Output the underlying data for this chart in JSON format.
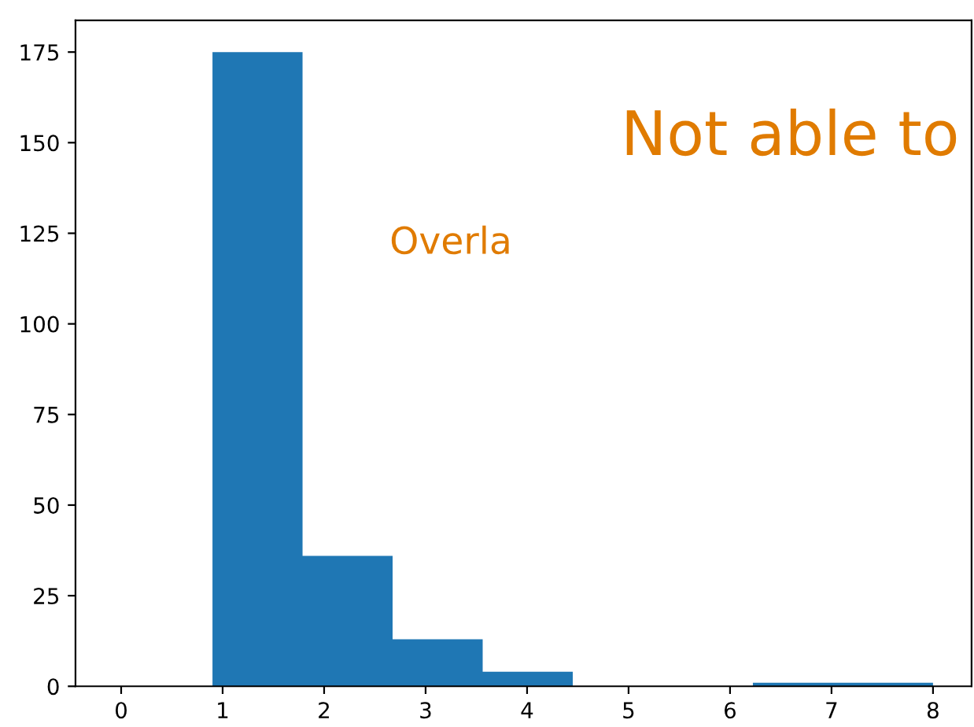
{
  "chart_data": {
    "type": "histogram",
    "bins": [
      0.9,
      1.7875,
      2.675,
      3.5625,
      4.45,
      5.3375,
      6.225,
      7.1125,
      8.0
    ],
    "values": [
      175,
      36,
      13,
      4,
      0,
      0,
      1,
      1
    ],
    "color": "#1f77b4",
    "xlim": [
      -0.45,
      8.38
    ],
    "xticks": [
      0,
      1,
      2,
      3,
      4,
      5,
      6,
      7,
      8
    ],
    "ylim": [
      0,
      183.75
    ],
    "yticks": [
      0,
      25,
      50,
      75,
      100,
      125,
      150,
      175
    ],
    "annotations": [
      "Not able to",
      "Overla"
    ],
    "grid": false
  }
}
